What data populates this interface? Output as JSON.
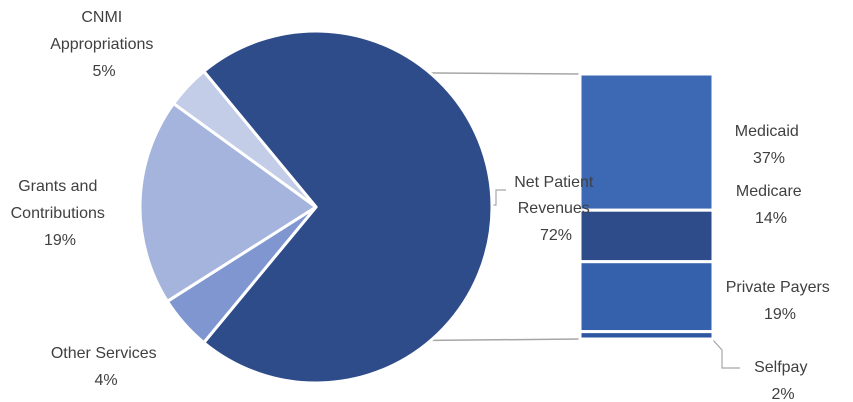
{
  "chart_data": {
    "type": "pie",
    "variant": "bar-of-pie",
    "title": "",
    "slices": [
      {
        "label_lines": [
          "Net Patient",
          "Revenues"
        ],
        "percent_label": "72%",
        "value": 72,
        "color": "#2e4b8a"
      },
      {
        "label_lines": [
          "CNMI",
          "Appropriations"
        ],
        "percent_label": "5%",
        "value": 5,
        "color": "#7f96d0"
      },
      {
        "label_lines": [
          "Grants and",
          "Contributions"
        ],
        "percent_label": "19%",
        "value": 19,
        "color": "#a5b4dc"
      },
      {
        "label_lines": [
          "Other Services"
        ],
        "percent_label": "4%",
        "value": 4,
        "color": "#c3cde8"
      }
    ],
    "breakdown_of": "Net Patient Revenues",
    "breakdown": [
      {
        "label": "Medicaid",
        "percent_label": "37%",
        "value": 37,
        "color": "#3c68b4"
      },
      {
        "label": "Medicare",
        "percent_label": "14%",
        "value": 14,
        "color": "#2e4b8a"
      },
      {
        "label": "Private Payers",
        "percent_label": "19%",
        "value": 19,
        "color": "#3561ac"
      },
      {
        "label": "Selfpay",
        "percent_label": "2%",
        "value": 2,
        "color": "#2f56a0"
      }
    ]
  }
}
